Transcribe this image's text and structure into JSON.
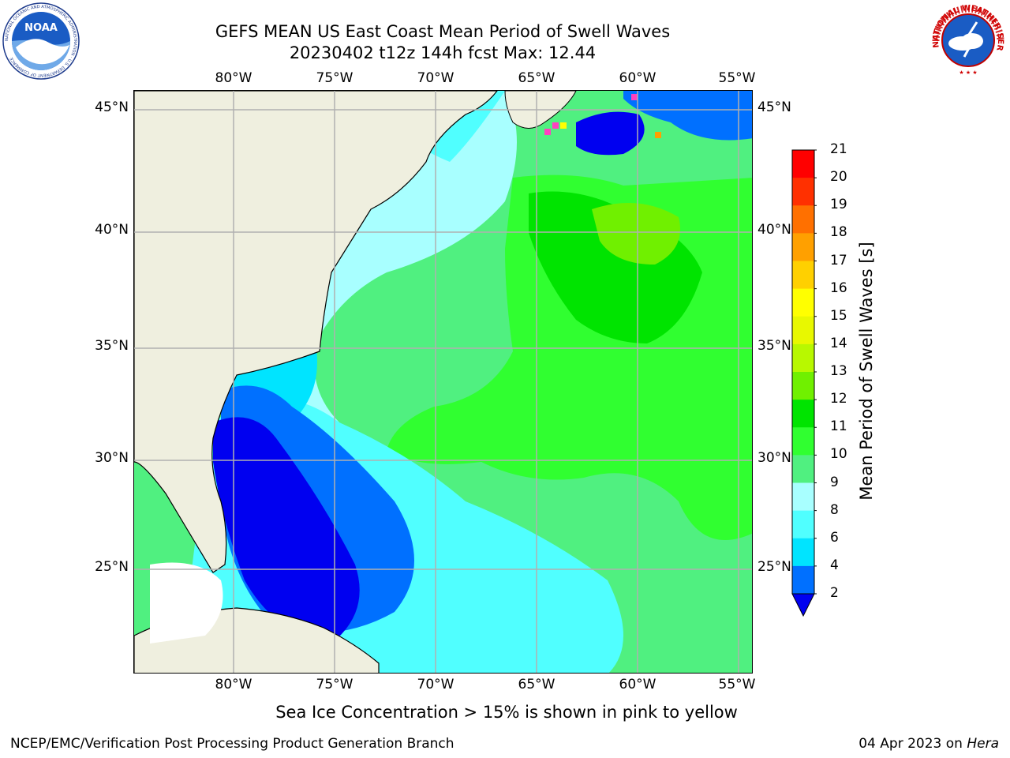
{
  "title": {
    "line1": "GEFS MEAN US East Coast Mean Period of Swell Waves",
    "line2": "20230402 t12z 144h fcst   Max: 12.44"
  },
  "longitude_labels": [
    "80°W",
    "75°W",
    "70°W",
    "65°W",
    "60°W",
    "55°W"
  ],
  "latitude_labels": [
    "45°N",
    "40°N",
    "35°N",
    "30°N",
    "25°N"
  ],
  "colorbar": {
    "title": "Mean Period of Swell Waves [s]",
    "ticks": [
      "2",
      "4",
      "6",
      "8",
      "9",
      "10",
      "11",
      "12",
      "13",
      "14",
      "15",
      "16",
      "17",
      "18",
      "19",
      "20",
      "21"
    ],
    "colors": [
      "#0000f0",
      "#0070ff",
      "#00e4ff",
      "#50ffff",
      "#a8ffff",
      "#50f080",
      "#30ff30",
      "#00e400",
      "#70f000",
      "#b8f800",
      "#e8f800",
      "#ffff00",
      "#ffd000",
      "#ffa000",
      "#ff7000",
      "#ff3000",
      "#ff0000"
    ]
  },
  "map_colors": {
    "land": "#efefdf",
    "ice_shelf": "#ffffff",
    "grid": "#b0b0b0",
    "coast": "#000000"
  },
  "logos": {
    "noaa": "NOAA",
    "noaa_ring": "NATIONAL OCEANIC AND ATMOSPHERIC ADMINISTRATION · U.S. DEPARTMENT OF COMMERCE",
    "nws_ring": "NATIONAL WEATHER SERVICE"
  },
  "note": "Sea Ice Concentration > 15% is shown in pink to yellow",
  "footer": {
    "left": "NCEP/EMC/Verification Post Processing Product Generation Branch",
    "right_date": "04 Apr 2023 on ",
    "right_machine": "Hera"
  }
}
